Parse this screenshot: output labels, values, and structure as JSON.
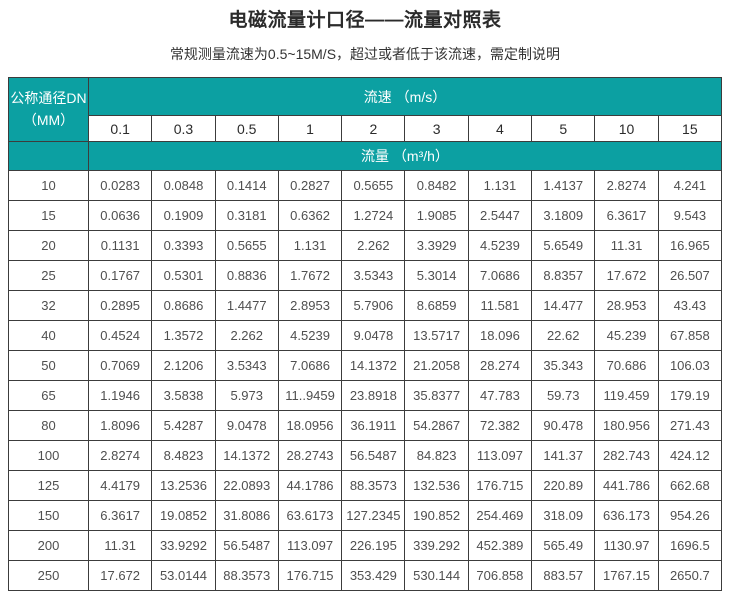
{
  "title": "电磁流量计口径——流量对照表",
  "subtitle": "常规测量流速为0.5~15M/S，超过或者低于该流速，需定制说明",
  "table": {
    "corner_header_line1": "公称通径DN",
    "corner_header_line2": "（MM）",
    "velocity_header": "流速 （m/s）",
    "velocity_values": [
      "0.1",
      "0.3",
      "0.5",
      "1",
      "2",
      "3",
      "4",
      "5",
      "10",
      "15"
    ],
    "flow_header": "流量 （m³/h）",
    "rows": [
      {
        "dn": "10",
        "values": [
          "0.0283",
          "0.0848",
          "0.1414",
          "0.2827",
          "0.5655",
          "0.8482",
          "1.131",
          "1.4137",
          "2.8274",
          "4.241"
        ]
      },
      {
        "dn": "15",
        "values": [
          "0.0636",
          "0.1909",
          "0.3181",
          "0.6362",
          "1.2724",
          "1.9085",
          "2.5447",
          "3.1809",
          "6.3617",
          "9.543"
        ]
      },
      {
        "dn": "20",
        "values": [
          "0.1131",
          "0.3393",
          "0.5655",
          "1.131",
          "2.262",
          "3.3929",
          "4.5239",
          "5.6549",
          "11.31",
          "16.965"
        ]
      },
      {
        "dn": "25",
        "values": [
          "0.1767",
          "0.5301",
          "0.8836",
          "1.7672",
          "3.5343",
          "5.3014",
          "7.0686",
          "8.8357",
          "17.672",
          "26.507"
        ]
      },
      {
        "dn": "32",
        "values": [
          "0.2895",
          "0.8686",
          "1.4477",
          "2.8953",
          "5.7906",
          "8.6859",
          "11.581",
          "14.477",
          "28.953",
          "43.43"
        ]
      },
      {
        "dn": "40",
        "values": [
          "0.4524",
          "1.3572",
          "2.262",
          "4.5239",
          "9.0478",
          "13.5717",
          "18.096",
          "22.62",
          "45.239",
          "67.858"
        ]
      },
      {
        "dn": "50",
        "values": [
          "0.7069",
          "2.1206",
          "3.5343",
          "7.0686",
          "14.1372",
          "21.2058",
          "28.274",
          "35.343",
          "70.686",
          "106.03"
        ]
      },
      {
        "dn": "65",
        "values": [
          "1.1946",
          "3.5838",
          "5.973",
          "11..9459",
          "23.8918",
          "35.8377",
          "47.783",
          "59.73",
          "119.459",
          "179.19"
        ]
      },
      {
        "dn": "80",
        "values": [
          "1.8096",
          "5.4287",
          "9.0478",
          "18.0956",
          "36.1911",
          "54.2867",
          "72.382",
          "90.478",
          "180.956",
          "271.43"
        ]
      },
      {
        "dn": "100",
        "values": [
          "2.8274",
          "8.4823",
          "14.1372",
          "28.2743",
          "56.5487",
          "84.823",
          "113.097",
          "141.37",
          "282.743",
          "424.12"
        ]
      },
      {
        "dn": "125",
        "values": [
          "4.4179",
          "13.2536",
          "22.0893",
          "44.1786",
          "88.3573",
          "132.536",
          "176.715",
          "220.89",
          "441.786",
          "662.68"
        ]
      },
      {
        "dn": "150",
        "values": [
          "6.3617",
          "19.0852",
          "31.8086",
          "63.6173",
          "127.2345",
          "190.852",
          "254.469",
          "318.09",
          "636.173",
          "954.26"
        ]
      },
      {
        "dn": "200",
        "values": [
          "11.31",
          "33.9292",
          "56.5487",
          "113.097",
          "226.195",
          "339.292",
          "452.389",
          "565.49",
          "1130.97",
          "1696.5"
        ]
      },
      {
        "dn": "250",
        "values": [
          "17.672",
          "53.0144",
          "88.3573",
          "176.715",
          "353.429",
          "530.144",
          "706.858",
          "883.57",
          "1767.15",
          "2650.7"
        ]
      }
    ]
  },
  "colors": {
    "header_teal": "#0CA0A2",
    "border": "#3C3C3C",
    "data_text": "#4F4F4F",
    "title_text": "#2B2B2B"
  }
}
